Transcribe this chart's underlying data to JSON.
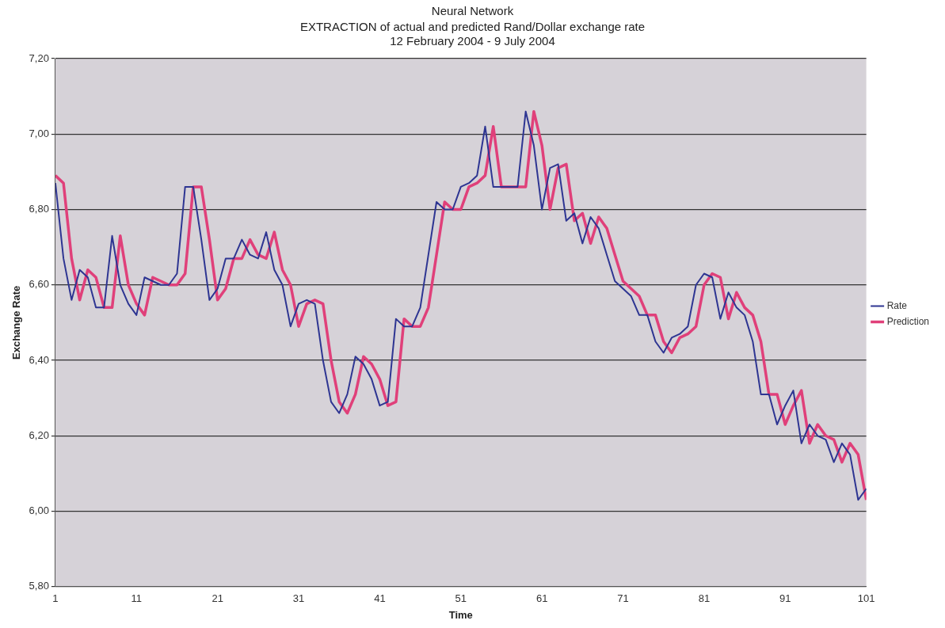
{
  "chart_data": {
    "type": "line",
    "title": "Neural Network",
    "subtitle": "EXTRACTION of actual and predicted Rand/Dollar exchange rate\n12 February 2004 - 9 July 2004",
    "xlabel": "Time",
    "ylabel": "Exchange Rate",
    "x": [
      1,
      2,
      3,
      4,
      5,
      6,
      7,
      8,
      9,
      10,
      11,
      12,
      13,
      14,
      15,
      16,
      17,
      18,
      19,
      20,
      21,
      22,
      23,
      24,
      25,
      26,
      27,
      28,
      29,
      30,
      31,
      32,
      33,
      34,
      35,
      36,
      37,
      38,
      39,
      40,
      41,
      42,
      43,
      44,
      45,
      46,
      47,
      48,
      49,
      50,
      51,
      52,
      53,
      54,
      55,
      56,
      57,
      58,
      59,
      60,
      61,
      62,
      63,
      64,
      65,
      66,
      67,
      68,
      69,
      70,
      71,
      72,
      73,
      74,
      75,
      76,
      77,
      78,
      79,
      80,
      81,
      82,
      83,
      84,
      85,
      86,
      87,
      88,
      89,
      90,
      91,
      92,
      93,
      94,
      95,
      96,
      97,
      98,
      99,
      100,
      101
    ],
    "series": [
      {
        "name": "Rate",
        "color": "#2e3592",
        "values": [
          6.87,
          6.67,
          6.56,
          6.64,
          6.62,
          6.54,
          6.54,
          6.73,
          6.6,
          6.55,
          6.52,
          6.62,
          6.61,
          6.6,
          6.6,
          6.63,
          6.86,
          6.86,
          6.72,
          6.56,
          6.59,
          6.67,
          6.67,
          6.72,
          6.68,
          6.67,
          6.74,
          6.64,
          6.6,
          6.49,
          6.55,
          6.56,
          6.55,
          6.4,
          6.29,
          6.26,
          6.31,
          6.41,
          6.39,
          6.35,
          6.28,
          6.29,
          6.51,
          6.49,
          6.49,
          6.54,
          6.68,
          6.82,
          6.8,
          6.8,
          6.86,
          6.87,
          6.89,
          7.02,
          6.86,
          6.86,
          6.86,
          6.86,
          7.06,
          6.97,
          6.8,
          6.91,
          6.92,
          6.77,
          6.79,
          6.71,
          6.78,
          6.75,
          6.68,
          6.61,
          6.59,
          6.57,
          6.52,
          6.52,
          6.45,
          6.42,
          6.46,
          6.47,
          6.49,
          6.6,
          6.63,
          6.62,
          6.51,
          6.58,
          6.54,
          6.52,
          6.45,
          6.31,
          6.31,
          6.23,
          6.28,
          6.32,
          6.18,
          6.23,
          6.2,
          6.19,
          6.13,
          6.18,
          6.15,
          6.03,
          6.06
        ]
      },
      {
        "name": "Prediction",
        "color": "#e0407a",
        "values": [
          6.89,
          6.87,
          6.67,
          6.56,
          6.64,
          6.62,
          6.54,
          6.54,
          6.73,
          6.6,
          6.55,
          6.52,
          6.62,
          6.61,
          6.6,
          6.6,
          6.63,
          6.86,
          6.86,
          6.72,
          6.56,
          6.59,
          6.67,
          6.67,
          6.72,
          6.68,
          6.67,
          6.74,
          6.64,
          6.6,
          6.49,
          6.55,
          6.56,
          6.55,
          6.4,
          6.29,
          6.26,
          6.31,
          6.41,
          6.39,
          6.35,
          6.28,
          6.29,
          6.51,
          6.49,
          6.49,
          6.54,
          6.68,
          6.82,
          6.8,
          6.8,
          6.86,
          6.87,
          6.89,
          7.02,
          6.86,
          6.86,
          6.86,
          6.86,
          7.06,
          6.97,
          6.8,
          6.91,
          6.92,
          6.77,
          6.79,
          6.71,
          6.78,
          6.75,
          6.68,
          6.61,
          6.59,
          6.57,
          6.52,
          6.52,
          6.45,
          6.42,
          6.46,
          6.47,
          6.49,
          6.6,
          6.63,
          6.62,
          6.51,
          6.58,
          6.54,
          6.52,
          6.45,
          6.31,
          6.31,
          6.23,
          6.28,
          6.32,
          6.18,
          6.23,
          6.2,
          6.19,
          6.13,
          6.18,
          6.15,
          6.03
        ]
      }
    ],
    "xlim": [
      1,
      101
    ],
    "xticks": [
      1,
      11,
      21,
      31,
      41,
      51,
      61,
      71,
      81,
      91,
      101
    ],
    "ylim": [
      5.8,
      7.2
    ],
    "yticks": [
      {
        "value": 5.8,
        "label": "5,80"
      },
      {
        "value": 6.0,
        "label": "6,00"
      },
      {
        "value": 6.2,
        "label": "6,20"
      },
      {
        "value": 6.4,
        "label": "6,40"
      },
      {
        "value": 6.6,
        "label": "6,60"
      },
      {
        "value": 6.8,
        "label": "6,80"
      },
      {
        "value": 7.0,
        "label": "7,00"
      },
      {
        "value": 7.2,
        "label": "7,20"
      }
    ],
    "grid": "y",
    "legend": "right",
    "marker": "none",
    "line_style": "solid"
  }
}
